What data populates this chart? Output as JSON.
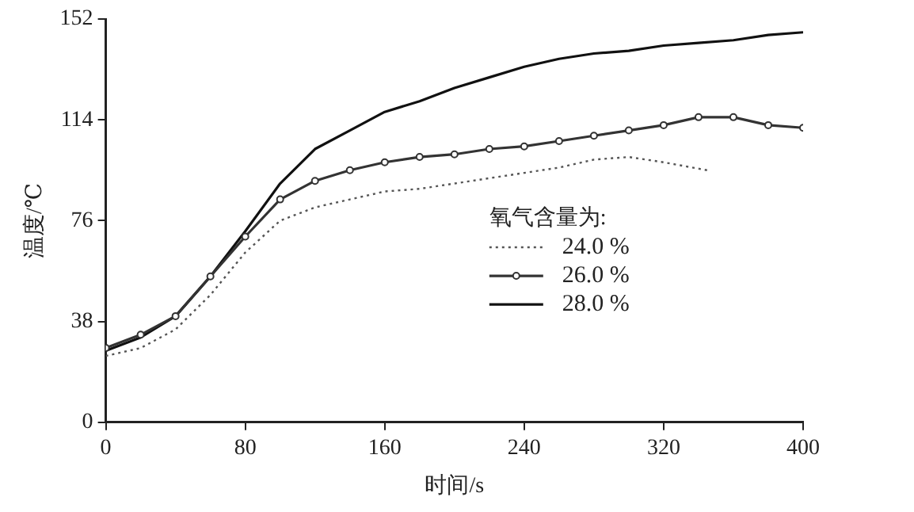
{
  "chart_data": {
    "type": "line",
    "xlabel": "时间/s",
    "ylabel": "温度/℃",
    "legend_title": "氧气含量为:",
    "legend": "bottom right",
    "grid": false,
    "xlim": [
      0,
      400
    ],
    "xticks": [
      0,
      80,
      160,
      240,
      320,
      400
    ],
    "ylim": [
      0,
      152
    ],
    "yticks": [
      0,
      38,
      76,
      114,
      152
    ],
    "series": [
      {
        "name": "24.0 %",
        "color": "#555555",
        "line_style": "dotted",
        "marker": "none",
        "x": [
          0,
          20,
          40,
          60,
          80,
          100,
          120,
          140,
          160,
          180,
          200,
          220,
          240,
          260,
          280,
          300,
          320,
          345
        ],
        "values": [
          25,
          28,
          35,
          48,
          64,
          76,
          81,
          84,
          87,
          88,
          90,
          92,
          94,
          96,
          99,
          100,
          98,
          95
        ]
      },
      {
        "name": "26.0 %",
        "color": "#333333",
        "line_style": "solid",
        "marker": "circle",
        "x": [
          0,
          20,
          40,
          60,
          80,
          100,
          120,
          140,
          160,
          180,
          200,
          220,
          240,
          260,
          280,
          300,
          320,
          340,
          360,
          380,
          400
        ],
        "values": [
          28,
          33,
          40,
          55,
          70,
          84,
          91,
          95,
          98,
          100,
          101,
          103,
          104,
          106,
          108,
          110,
          112,
          115,
          115,
          112,
          111
        ]
      },
      {
        "name": "28.0 %",
        "color": "#111111",
        "line_style": "solid",
        "marker": "none",
        "x": [
          0,
          20,
          40,
          60,
          80,
          100,
          120,
          140,
          160,
          180,
          200,
          220,
          240,
          260,
          280,
          300,
          320,
          340,
          360,
          380,
          400
        ],
        "values": [
          27,
          32,
          40,
          55,
          72,
          90,
          103,
          110,
          117,
          121,
          126,
          130,
          134,
          137,
          139,
          140,
          142,
          143,
          144,
          146,
          147
        ]
      }
    ]
  }
}
